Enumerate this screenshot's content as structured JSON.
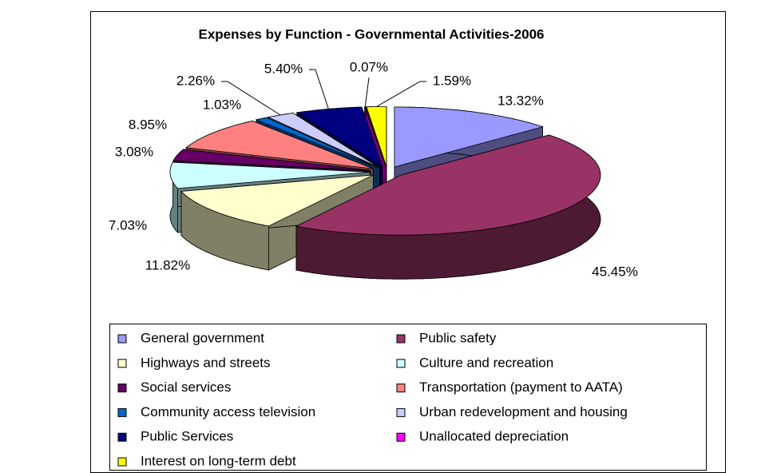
{
  "chart_data": {
    "type": "pie3d",
    "title": "Expenses by Function - Governmental Activities-2006",
    "categories": [
      "General government",
      "Public safety",
      "Highways and streets",
      "Culture and recreation",
      "Social services",
      "Transportation (payment to AATA)",
      "Community access television",
      "Urban redevelopment and housing",
      "Public Services",
      "Unallocated depreciation",
      "Interest on long-term debt"
    ],
    "values": [
      13.32,
      45.45,
      11.82,
      7.03,
      3.08,
      8.95,
      1.03,
      2.26,
      5.4,
      0.07,
      1.59
    ],
    "value_labels": [
      "13.32%",
      "45.45%",
      "11.82%",
      "7.03%",
      "3.08%",
      "8.95%",
      "1.03%",
      "2.26%",
      "5.40%",
      "0.07%",
      "1.59%"
    ],
    "colors": [
      "#9999FF",
      "#993366",
      "#FFFFCC",
      "#CCFFFF",
      "#660066",
      "#FF8080",
      "#0066CC",
      "#CCCCFF",
      "#000080",
      "#FF00FF",
      "#FFFF00"
    ],
    "legend": "bottom"
  }
}
